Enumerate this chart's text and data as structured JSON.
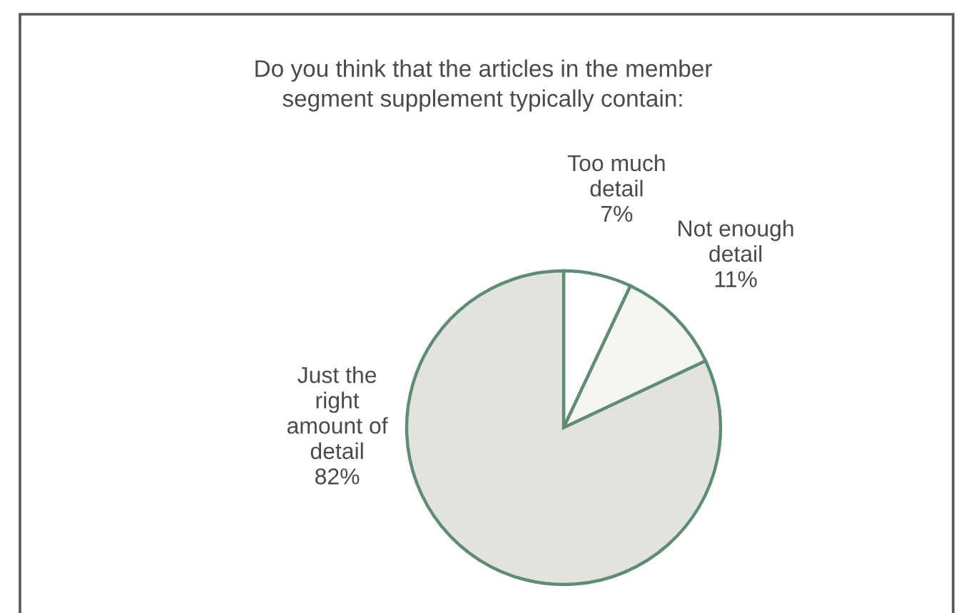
{
  "chart_data": {
    "type": "pie",
    "title": "Do you think that the articles in the member\nsegment supplement typically contain:",
    "categories": [
      "Too much\ndetail",
      "Not enough\ndetail",
      "Just the\nright\namount of\ndetail"
    ],
    "values": [
      7,
      11,
      82
    ],
    "value_labels": [
      "7%",
      "11%",
      "82%"
    ],
    "colors": [
      "#ffffff",
      "#f6f6f1",
      "#e3e3dd"
    ]
  }
}
